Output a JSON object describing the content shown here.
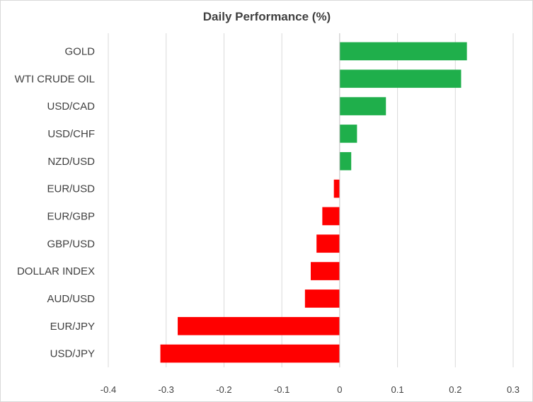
{
  "chart_data": {
    "type": "bar",
    "orientation": "horizontal",
    "title": "Daily Performance (%)",
    "xlabel": "",
    "ylabel": "",
    "categories": [
      "GOLD",
      "WTI CRUDE OIL",
      "USD/CAD",
      "USD/CHF",
      "NZD/USD",
      "EUR/USD",
      "EUR/GBP",
      "GBP/USD",
      "DOLLAR INDEX",
      "AUD/USD",
      "EUR/JPY",
      "USD/JPY"
    ],
    "values": [
      0.22,
      0.21,
      0.08,
      0.03,
      0.02,
      -0.01,
      -0.03,
      -0.04,
      -0.05,
      -0.06,
      -0.28,
      -0.31
    ],
    "xlim": [
      -0.4,
      0.3
    ],
    "xticks": [
      "-0.4",
      "-0.3",
      "-0.2",
      "-0.1",
      "0",
      "0.1",
      "0.2",
      "0.3"
    ],
    "grid": true,
    "legend": "none",
    "colors": {
      "positive": "#1faf4b",
      "negative": "#ff0000",
      "grid": "#d9d9d9",
      "axis": "#bfbfbf",
      "text": "#404040"
    }
  }
}
